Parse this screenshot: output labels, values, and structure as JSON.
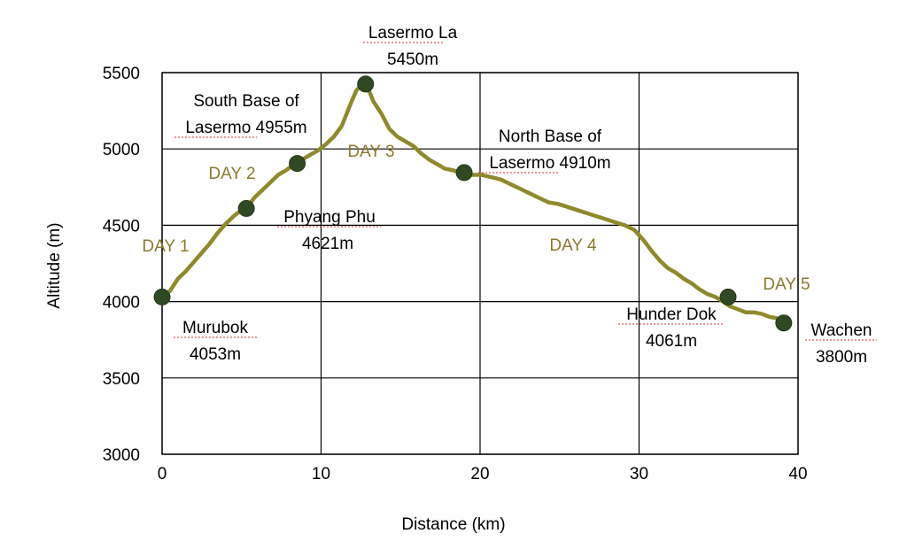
{
  "chart_data": {
    "type": "line",
    "xlabel": "Distance (km)",
    "ylabel": "Altitude (m)",
    "xlim": [
      0,
      40
    ],
    "ylim": [
      3000,
      5500
    ],
    "xticks": [
      0,
      10,
      20,
      30,
      40
    ],
    "yticks": [
      3000,
      3500,
      4000,
      4500,
      5000,
      5500
    ],
    "grid": true,
    "line_color": "#8f8a2a",
    "marker_color": "#2f4a22",
    "day_label_color": "#8a7a2c",
    "profile": {
      "x": [
        0,
        0.5,
        1,
        1.5,
        2,
        2.5,
        3,
        3.5,
        4,
        4.5,
        5,
        5.3,
        5.8,
        6.3,
        6.8,
        7.3,
        7.8,
        8.3,
        8.8,
        9.3,
        9.8,
        10.3,
        10.8,
        11.3,
        11.8,
        12.2,
        12.6,
        12.9,
        13.3,
        13.8,
        14.3,
        14.8,
        15.3,
        15.8,
        16.3,
        16.8,
        17.3,
        17.8,
        18.3,
        18.9,
        19.5,
        20.1,
        20.7,
        21.3,
        21.9,
        22.5,
        23.1,
        23.7,
        24.3,
        24.9,
        25.5,
        26.1,
        26.7,
        27.3,
        27.9,
        28.5,
        29.1,
        29.7,
        30.3,
        30.8,
        31.3,
        31.8,
        32.3,
        32.8,
        33.3,
        33.8,
        34.3,
        34.8,
        35.3,
        35.7,
        36.2,
        36.7,
        37.2,
        37.7,
        38.2,
        38.7,
        39.1
      ],
      "y": [
        4030,
        4070,
        4150,
        4200,
        4260,
        4320,
        4380,
        4450,
        4510,
        4560,
        4600,
        4610,
        4680,
        4730,
        4780,
        4830,
        4860,
        4900,
        4930,
        4960,
        4990,
        5030,
        5080,
        5150,
        5280,
        5380,
        5430,
        5410,
        5310,
        5230,
        5130,
        5080,
        5050,
        5020,
        4970,
        4930,
        4900,
        4870,
        4860,
        4840,
        4830,
        4830,
        4815,
        4800,
        4770,
        4740,
        4710,
        4680,
        4650,
        4640,
        4620,
        4600,
        4580,
        4560,
        4540,
        4520,
        4500,
        4470,
        4400,
        4330,
        4270,
        4220,
        4190,
        4150,
        4120,
        4080,
        4050,
        4030,
        4000,
        3970,
        3950,
        3930,
        3930,
        3920,
        3900,
        3890,
        3860
      ]
    },
    "waypoints": [
      {
        "x": 0,
        "y": 4030,
        "name": "Murubok",
        "elev": "4053m"
      },
      {
        "x": 5.3,
        "y": 4610,
        "name": "Phyang Phu",
        "elev": "4621m"
      },
      {
        "x": 8.5,
        "y": 4905,
        "name": "South Base of",
        "elev": "Lasermo 4955m"
      },
      {
        "x": 12.8,
        "y": 5425,
        "name": "Lasermo La",
        "elev": "5450m"
      },
      {
        "x": 19.0,
        "y": 4845,
        "name": "North Base of",
        "elev": "Lasermo 4910m"
      },
      {
        "x": 35.6,
        "y": 4030,
        "name": "Hunder Dok",
        "elev": "4061m"
      },
      {
        "x": 39.1,
        "y": 3860,
        "name": "Wachen",
        "elev": "3800m"
      }
    ],
    "day_labels": [
      "DAY 1",
      "DAY 2",
      "DAY 3",
      "DAY 4",
      "DAY 5"
    ]
  }
}
